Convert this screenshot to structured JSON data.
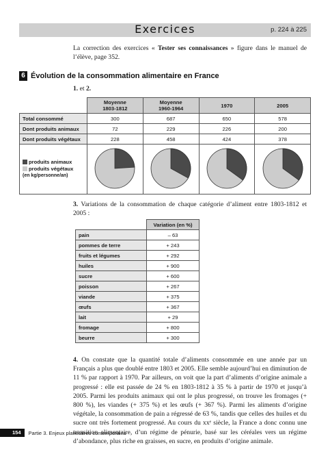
{
  "header": {
    "title": "Exercices",
    "pages": "p. 224 à 225"
  },
  "intro": {
    "pre": "La correction des exercices « ",
    "bold": "Tester ses connaissances",
    "post": " » figure dans le manuel de l’élève, page 352."
  },
  "section": {
    "number": "6",
    "title": "Évolution de la consommation alimentaire en France"
  },
  "q12_label": {
    "n1": "1.",
    "mid": " et ",
    "n2": "2."
  },
  "table1": {
    "columns": [
      {
        "line1": "Moyenne",
        "line2": "1803-1812"
      },
      {
        "line1": "Moyenne",
        "line2": "1960-1964"
      },
      {
        "line1": "1970",
        "line2": ""
      },
      {
        "line1": "2005",
        "line2": ""
      }
    ],
    "rows": [
      {
        "label": "Total consommé",
        "values": [
          "300",
          "687",
          "650",
          "578"
        ]
      },
      {
        "label": "Dont produits animaux",
        "values": [
          "72",
          "229",
          "226",
          "200"
        ]
      },
      {
        "label": "Dont produits végétaux",
        "values": [
          "228",
          "458",
          "424",
          "378"
        ]
      }
    ],
    "legend": {
      "animal": "produits animaux",
      "vegetal": "produits végétaux",
      "unit": "(en kg/personne/an)"
    },
    "pie_shares_animal_percent": [
      24,
      33,
      35,
      35
    ],
    "colors": {
      "animal": "#4a4a4a",
      "vegetal": "#cccccc"
    }
  },
  "q3": {
    "num": "3.",
    "text": " Variations de la consommation de chaque catégorie d’aliment entre 1803-1812 et 2005 :"
  },
  "table2": {
    "header": "Variation (en %)",
    "rows": [
      {
        "label": "pain",
        "value": "– 63"
      },
      {
        "label": "pommes de terre",
        "value": "+ 243"
      },
      {
        "label": "fruits et légumes",
        "value": "+ 292"
      },
      {
        "label": "huiles",
        "value": "+ 900"
      },
      {
        "label": "sucre",
        "value": "+ 600"
      },
      {
        "label": "poisson",
        "value": "+ 267"
      },
      {
        "label": "viande",
        "value": "+ 375"
      },
      {
        "label": "œufs",
        "value": "+ 367"
      },
      {
        "label": "lait",
        "value": "+ 29"
      },
      {
        "label": "fromage",
        "value": "+ 800"
      },
      {
        "label": "beurre",
        "value": "+ 300"
      }
    ]
  },
  "q4": {
    "num": "4.",
    "text": " On constate que la quantité totale d’aliments consommée en une année par un Français a plus que doublé entre 1803 et 2005. Elle semble aujourd’hui en diminution de 11 % par rapport à 1970. Par ailleurs, on voit que la part d’aliments d’origine animale a progressé : elle est passée de 24 % en 1803-1812 à 35 % à partir de 1970 et jusqu’à 2005. Parmi les produits animaux qui ont le plus progressé, on trouve les fromages (+ 800 %), les viandes (+ 375 %) et les œufs (+ 367 %). Parmi les aliments d’origine végétale, la consommation de pain a régressé de 63 %, tandis que celles des huiles et du sucre ont très fortement progressé. Au cours du xxᵉ siècle, la France a donc connu une transition alimentaire, d’un régime de pénurie, basé sur les céréales vers un régime d’abondance, plus riche en graisses, en sucre, en produits d’origine animale."
  },
  "footer": {
    "page_number": "154",
    "text": "Partie 3. Enjeux planétaires contemporains"
  }
}
